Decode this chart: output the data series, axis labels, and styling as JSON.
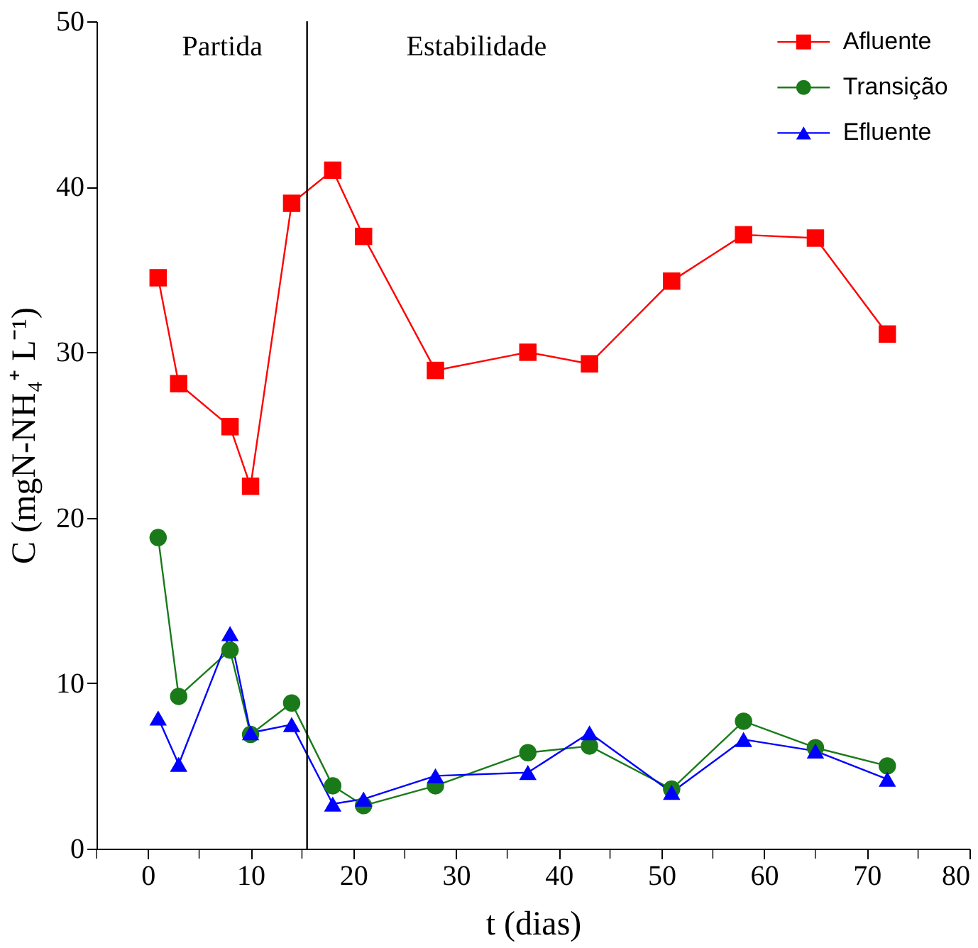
{
  "chart_data": {
    "type": "line",
    "xlabel": "t (dias)",
    "ylabel": "C (mgN-NH₄⁺ L⁻¹)",
    "x": [
      1,
      3,
      8,
      10,
      14,
      18,
      21,
      28,
      37,
      43,
      51,
      58,
      65,
      72
    ],
    "series": [
      {
        "name": "Afluente",
        "color": "#ff0000",
        "marker": "square",
        "values": [
          34.5,
          28.1,
          25.5,
          21.9,
          39,
          41,
          37,
          28.9,
          30,
          29.3,
          34.3,
          37.1,
          36.9,
          31.1
        ]
      },
      {
        "name": "Transição",
        "color": "#1a7a1a",
        "marker": "circle",
        "values": [
          18.8,
          9.2,
          12,
          6.9,
          8.8,
          3.8,
          2.6,
          3.8,
          5.8,
          6.2,
          3.6,
          7.7,
          6.1,
          5.0
        ]
      },
      {
        "name": "Efluente",
        "color": "#0000ff",
        "marker": "triangle",
        "values": [
          7.9,
          5.1,
          13,
          7,
          7.5,
          2.7,
          3,
          4.4,
          4.6,
          7,
          3.4,
          6.6,
          5.9,
          4.2
        ]
      }
    ],
    "xlim": [
      -5,
      80
    ],
    "xticks": [
      {
        "value": -5,
        "label": null
      },
      0,
      {
        "value": 5,
        "label": null
      },
      10,
      {
        "value": 15,
        "label": null
      },
      20,
      {
        "value": 25,
        "label": null
      },
      30,
      {
        "value": 35,
        "label": null
      },
      40,
      {
        "value": 45,
        "label": null
      },
      50,
      {
        "value": 55,
        "label": null
      },
      60,
      {
        "value": 65,
        "label": null
      },
      70,
      {
        "value": 75,
        "label": null
      },
      80
    ],
    "ylim": [
      0,
      50
    ],
    "yticks": [
      0,
      10,
      20,
      30,
      40,
      50
    ],
    "ref_lines": [
      {
        "axis": "x",
        "value": 15.5,
        "color": "#000000"
      }
    ],
    "annotations": [
      "Partida",
      "Estabilidade"
    ],
    "grid": false,
    "legend": "top right",
    "line_style": "solid"
  }
}
